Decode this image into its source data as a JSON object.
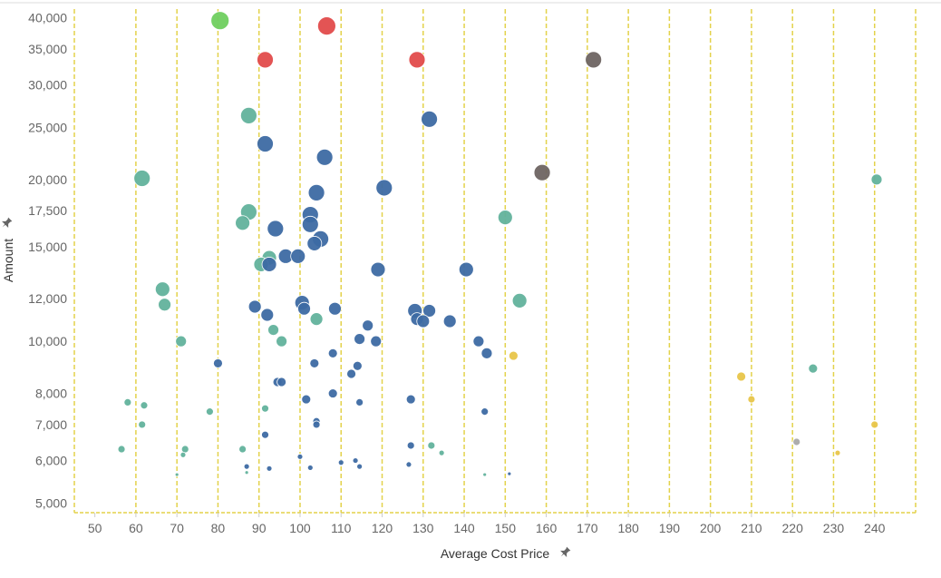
{
  "chart_data": {
    "type": "scatter",
    "title": "",
    "xlabel": "Average Cost Price",
    "ylabel": "Amount",
    "xlabel_pin": "pin-icon",
    "ylabel_pin": "pin-icon",
    "xlim": [
      45,
      250
    ],
    "ylim": [
      4800,
      41500
    ],
    "y_scale": "log",
    "x_ticks": [
      50,
      60,
      70,
      80,
      90,
      100,
      110,
      120,
      130,
      140,
      150,
      160,
      170,
      180,
      190,
      200,
      210,
      220,
      230,
      240
    ],
    "x_tick_labels": [
      "50",
      "60",
      "70",
      "80",
      "90",
      "100",
      "110",
      "120",
      "130",
      "140",
      "150",
      "160",
      "170",
      "180",
      "190",
      "200",
      "210",
      "220",
      "230",
      "240"
    ],
    "y_ticks": [
      5000,
      6000,
      7000,
      8000,
      10000,
      12000,
      15000,
      17500,
      20000,
      25000,
      30000,
      35000,
      40000
    ],
    "y_tick_labels": [
      "5,000",
      "6,000",
      "7,000",
      "8,000",
      "10,000",
      "12,000",
      "15,000",
      "17,500",
      "20,000",
      "25,000",
      "30,000",
      "35,000",
      "40,000"
    ],
    "gridlines": "vertical dashed",
    "colors": {
      "blue": "#3d6aa3",
      "teal": "#62b29c",
      "green": "#6fcf5f",
      "red": "#e14b4b",
      "brown": "#6e6462",
      "yellow": "#e8c54a",
      "grey": "#a9a9a9",
      "grid": "#e3d24a"
    },
    "points": [
      {
        "x": 80.5,
        "y": 39500,
        "r": 10,
        "c": "green"
      },
      {
        "x": 106.5,
        "y": 38600,
        "r": 10,
        "c": "red"
      },
      {
        "x": 91.5,
        "y": 33400,
        "r": 9,
        "c": "red"
      },
      {
        "x": 128.5,
        "y": 33400,
        "r": 9,
        "c": "red"
      },
      {
        "x": 171.5,
        "y": 33400,
        "r": 9,
        "c": "brown"
      },
      {
        "x": 87.5,
        "y": 26300,
        "r": 9,
        "c": "teal"
      },
      {
        "x": 131.5,
        "y": 25900,
        "r": 9,
        "c": "blue"
      },
      {
        "x": 91.5,
        "y": 23300,
        "r": 9,
        "c": "blue"
      },
      {
        "x": 106.0,
        "y": 22000,
        "r": 9,
        "c": "blue"
      },
      {
        "x": 159.0,
        "y": 20600,
        "r": 9,
        "c": "brown"
      },
      {
        "x": 61.5,
        "y": 20100,
        "r": 9,
        "c": "teal"
      },
      {
        "x": 240.5,
        "y": 20000,
        "r": 6,
        "c": "teal"
      },
      {
        "x": 120.5,
        "y": 19300,
        "r": 9,
        "c": "blue"
      },
      {
        "x": 104.0,
        "y": 18900,
        "r": 9,
        "c": "blue"
      },
      {
        "x": 87.5,
        "y": 17400,
        "r": 9,
        "c": "teal"
      },
      {
        "x": 102.5,
        "y": 17200,
        "r": 9,
        "c": "blue"
      },
      {
        "x": 150.0,
        "y": 17000,
        "r": 8,
        "c": "teal"
      },
      {
        "x": 86.0,
        "y": 16600,
        "r": 8,
        "c": "teal"
      },
      {
        "x": 102.5,
        "y": 16500,
        "r": 9,
        "c": "blue"
      },
      {
        "x": 94.0,
        "y": 16200,
        "r": 9,
        "c": "blue"
      },
      {
        "x": 105.0,
        "y": 15500,
        "r": 9,
        "c": "blue"
      },
      {
        "x": 103.5,
        "y": 15200,
        "r": 8,
        "c": "blue"
      },
      {
        "x": 96.5,
        "y": 14400,
        "r": 8,
        "c": "blue"
      },
      {
        "x": 92.5,
        "y": 14300,
        "r": 8,
        "c": "teal"
      },
      {
        "x": 99.5,
        "y": 14400,
        "r": 8,
        "c": "blue"
      },
      {
        "x": 90.5,
        "y": 13900,
        "r": 8,
        "c": "teal"
      },
      {
        "x": 92.5,
        "y": 13900,
        "r": 8,
        "c": "blue"
      },
      {
        "x": 119.0,
        "y": 13600,
        "r": 8,
        "c": "blue"
      },
      {
        "x": 140.5,
        "y": 13600,
        "r": 8,
        "c": "blue"
      },
      {
        "x": 66.5,
        "y": 12500,
        "r": 8,
        "c": "teal"
      },
      {
        "x": 153.5,
        "y": 11900,
        "r": 8,
        "c": "teal"
      },
      {
        "x": 67.0,
        "y": 11700,
        "r": 7,
        "c": "teal"
      },
      {
        "x": 89.0,
        "y": 11600,
        "r": 7,
        "c": "blue"
      },
      {
        "x": 100.5,
        "y": 11800,
        "r": 8,
        "c": "blue"
      },
      {
        "x": 101.0,
        "y": 11500,
        "r": 7,
        "c": "blue"
      },
      {
        "x": 108.5,
        "y": 11500,
        "r": 7,
        "c": "blue"
      },
      {
        "x": 128.0,
        "y": 11400,
        "r": 8,
        "c": "blue"
      },
      {
        "x": 131.5,
        "y": 11400,
        "r": 7,
        "c": "blue"
      },
      {
        "x": 92.0,
        "y": 11200,
        "r": 7,
        "c": "blue"
      },
      {
        "x": 104.0,
        "y": 11000,
        "r": 7,
        "c": "teal"
      },
      {
        "x": 128.5,
        "y": 11000,
        "r": 7,
        "c": "blue"
      },
      {
        "x": 130.0,
        "y": 10900,
        "r": 7,
        "c": "blue"
      },
      {
        "x": 136.5,
        "y": 10900,
        "r": 7,
        "c": "blue"
      },
      {
        "x": 116.5,
        "y": 10700,
        "r": 6,
        "c": "blue"
      },
      {
        "x": 93.5,
        "y": 10500,
        "r": 6,
        "c": "teal"
      },
      {
        "x": 71.0,
        "y": 10000,
        "r": 6,
        "c": "teal"
      },
      {
        "x": 95.5,
        "y": 10000,
        "r": 6,
        "c": "teal"
      },
      {
        "x": 114.5,
        "y": 10100,
        "r": 6,
        "c": "blue"
      },
      {
        "x": 118.5,
        "y": 10000,
        "r": 6,
        "c": "blue"
      },
      {
        "x": 143.5,
        "y": 10000,
        "r": 6,
        "c": "blue"
      },
      {
        "x": 108.0,
        "y": 9500,
        "r": 5,
        "c": "blue"
      },
      {
        "x": 145.5,
        "y": 9500,
        "r": 6,
        "c": "blue"
      },
      {
        "x": 152.0,
        "y": 9400,
        "r": 5,
        "c": "yellow"
      },
      {
        "x": 80.0,
        "y": 9100,
        "r": 5,
        "c": "blue"
      },
      {
        "x": 103.5,
        "y": 9100,
        "r": 5,
        "c": "blue"
      },
      {
        "x": 114.0,
        "y": 9000,
        "r": 5,
        "c": "blue"
      },
      {
        "x": 225.0,
        "y": 8900,
        "r": 5,
        "c": "teal"
      },
      {
        "x": 112.5,
        "y": 8700,
        "r": 5,
        "c": "blue"
      },
      {
        "x": 207.5,
        "y": 8600,
        "r": 5,
        "c": "yellow"
      },
      {
        "x": 94.5,
        "y": 8400,
        "r": 5,
        "c": "blue"
      },
      {
        "x": 95.5,
        "y": 8400,
        "r": 5,
        "c": "blue"
      },
      {
        "x": 108.0,
        "y": 8000,
        "r": 5,
        "c": "blue"
      },
      {
        "x": 101.5,
        "y": 7800,
        "r": 5,
        "c": "blue"
      },
      {
        "x": 127.0,
        "y": 7800,
        "r": 5,
        "c": "blue"
      },
      {
        "x": 210.0,
        "y": 7800,
        "r": 4,
        "c": "yellow"
      },
      {
        "x": 58.0,
        "y": 7700,
        "r": 4,
        "c": "teal"
      },
      {
        "x": 62.0,
        "y": 7600,
        "r": 4,
        "c": "teal"
      },
      {
        "x": 114.5,
        "y": 7700,
        "r": 4,
        "c": "blue"
      },
      {
        "x": 91.5,
        "y": 7500,
        "r": 4,
        "c": "teal"
      },
      {
        "x": 78.0,
        "y": 7400,
        "r": 4,
        "c": "teal"
      },
      {
        "x": 145.0,
        "y": 7400,
        "r": 4,
        "c": "blue"
      },
      {
        "x": 104.0,
        "y": 7100,
        "r": 4,
        "c": "blue"
      },
      {
        "x": 104.0,
        "y": 7000,
        "r": 4,
        "c": "blue"
      },
      {
        "x": 61.5,
        "y": 7000,
        "r": 4,
        "c": "teal"
      },
      {
        "x": 240.0,
        "y": 7000,
        "r": 4,
        "c": "yellow"
      },
      {
        "x": 91.5,
        "y": 6700,
        "r": 4,
        "c": "blue"
      },
      {
        "x": 221.0,
        "y": 6500,
        "r": 4,
        "c": "grey"
      },
      {
        "x": 127.0,
        "y": 6400,
        "r": 4,
        "c": "blue"
      },
      {
        "x": 132.0,
        "y": 6400,
        "r": 4,
        "c": "teal"
      },
      {
        "x": 56.5,
        "y": 6300,
        "r": 4,
        "c": "teal"
      },
      {
        "x": 72.0,
        "y": 6300,
        "r": 4,
        "c": "teal"
      },
      {
        "x": 86.0,
        "y": 6300,
        "r": 4,
        "c": "teal"
      },
      {
        "x": 71.5,
        "y": 6150,
        "r": 3,
        "c": "teal"
      },
      {
        "x": 134.5,
        "y": 6200,
        "r": 3,
        "c": "teal"
      },
      {
        "x": 231.0,
        "y": 6200,
        "r": 3,
        "c": "yellow"
      },
      {
        "x": 100.0,
        "y": 6100,
        "r": 3,
        "c": "blue"
      },
      {
        "x": 113.5,
        "y": 6000,
        "r": 3,
        "c": "blue"
      },
      {
        "x": 110.0,
        "y": 5950,
        "r": 3,
        "c": "blue"
      },
      {
        "x": 126.5,
        "y": 5900,
        "r": 3,
        "c": "blue"
      },
      {
        "x": 87.0,
        "y": 5850,
        "r": 3,
        "c": "blue"
      },
      {
        "x": 114.5,
        "y": 5850,
        "r": 3,
        "c": "blue"
      },
      {
        "x": 102.5,
        "y": 5820,
        "r": 3,
        "c": "blue"
      },
      {
        "x": 92.5,
        "y": 5800,
        "r": 3,
        "c": "blue"
      },
      {
        "x": 87.0,
        "y": 5700,
        "r": 2,
        "c": "teal"
      },
      {
        "x": 70.0,
        "y": 5650,
        "r": 2,
        "c": "teal"
      },
      {
        "x": 145.0,
        "y": 5650,
        "r": 2,
        "c": "teal"
      },
      {
        "x": 151.0,
        "y": 5670,
        "r": 2,
        "c": "blue"
      }
    ]
  }
}
